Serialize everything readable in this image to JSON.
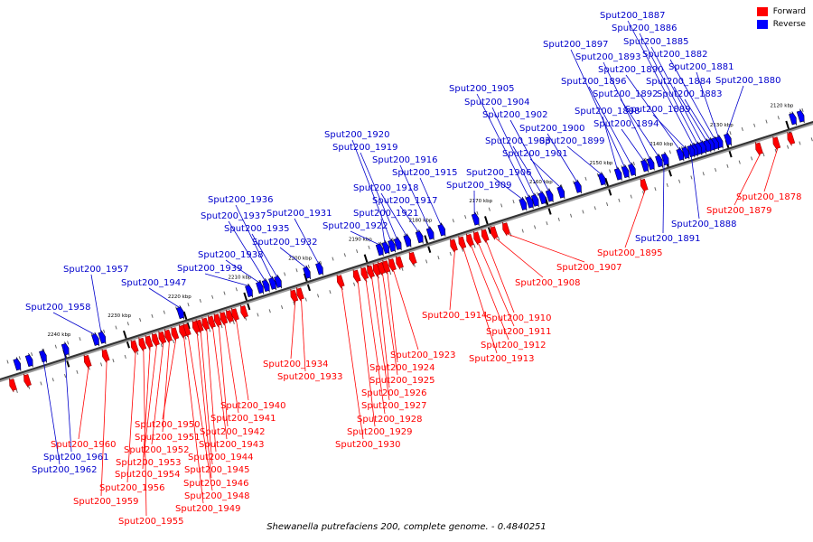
{
  "legend": {
    "forward_label": "Forward",
    "reverse_label": "Reverse",
    "forward_color": "#ff0000",
    "reverse_color": "#0000ff"
  },
  "caption": "Shewanella putrefaciens 200, complete genome. - 0.4840251",
  "track": {
    "start_kbp": 2116,
    "end_kbp": 2251,
    "ticks": [
      "2120 kbp",
      "2130 kbp",
      "2140 kbp",
      "2150 kbp",
      "2160 kbp",
      "2170 kbp",
      "2180 kbp",
      "2190 kbp",
      "2200 kbp",
      "2210 kbp",
      "2220 kbp",
      "2230 kbp",
      "2240 kbp"
    ]
  },
  "genes": [
    {
      "label": "Sput200_1878",
      "strand": "forward",
      "kbp": 2122.6
    },
    {
      "label": "Sput200_1879",
      "strand": "forward",
      "kbp": 2125.5
    },
    {
      "label": "Sput200_1880",
      "strand": "reverse",
      "kbp": 2129.6
    },
    {
      "label": "Sput200_1881",
      "strand": "reverse",
      "kbp": 2131.0
    },
    {
      "label": "Sput200_1882",
      "strand": "reverse",
      "kbp": 2131.7
    },
    {
      "label": "Sput200_1883",
      "strand": "reverse",
      "kbp": 2132.4
    },
    {
      "label": "Sput200_1884",
      "strand": "reverse",
      "kbp": 2133.0
    },
    {
      "label": "Sput200_1885",
      "strand": "reverse",
      "kbp": 2133.8
    },
    {
      "label": "Sput200_1886",
      "strand": "reverse",
      "kbp": 2134.5
    },
    {
      "label": "Sput200_1887",
      "strand": "reverse",
      "kbp": 2135.2
    },
    {
      "label": "Sput200_1888",
      "strand": "reverse",
      "kbp": 2135.7
    },
    {
      "label": "Sput200_1889",
      "strand": "reverse",
      "kbp": 2136.6
    },
    {
      "label": "Sput200_1890",
      "strand": "reverse",
      "kbp": 2137.5
    },
    {
      "label": "Sput200_1891",
      "strand": "reverse",
      "kbp": 2140.0
    },
    {
      "label": "Sput200_1892",
      "strand": "reverse",
      "kbp": 2141.0
    },
    {
      "label": "Sput200_1893",
      "strand": "reverse",
      "kbp": 2142.4
    },
    {
      "label": "Sput200_1894",
      "strand": "reverse",
      "kbp": 2143.4
    },
    {
      "label": "Sput200_1895",
      "strand": "forward",
      "kbp": 2144.6
    },
    {
      "label": "Sput200_1896",
      "strand": "reverse",
      "kbp": 2145.5
    },
    {
      "label": "Sput200_1897",
      "strand": "reverse",
      "kbp": 2146.6
    },
    {
      "label": "Sput200_1898",
      "strand": "reverse",
      "kbp": 2147.8
    },
    {
      "label": "Sput200_1899",
      "strand": "reverse",
      "kbp": 2150.5
    },
    {
      "label": "Sput200_1900",
      "strand": "reverse",
      "kbp": 2154.5
    },
    {
      "label": "Sput200_1901",
      "strand": "reverse",
      "kbp": 2157.3
    },
    {
      "label": "Sput200_1902",
      "strand": "reverse",
      "kbp": 2159.2
    },
    {
      "label": "Sput200_1903",
      "strand": "reverse",
      "kbp": 2160.4
    },
    {
      "label": "Sput200_1904",
      "strand": "reverse",
      "kbp": 2161.6
    },
    {
      "label": "Sput200_1905",
      "strand": "reverse",
      "kbp": 2162.5
    },
    {
      "label": "Sput200_1906",
      "strand": "reverse",
      "kbp": 2163.6
    },
    {
      "label": "Sput200_1907",
      "strand": "forward",
      "kbp": 2167.5
    },
    {
      "label": "Sput200_1908",
      "strand": "forward",
      "kbp": 2169.5
    },
    {
      "label": "Sput200_1909",
      "strand": "reverse",
      "kbp": 2171.5
    },
    {
      "label": "Sput200_1910",
      "strand": "forward",
      "kbp": 2171.0
    },
    {
      "label": "Sput200_1911",
      "strand": "forward",
      "kbp": 2172.3
    },
    {
      "label": "Sput200_1912",
      "strand": "forward",
      "kbp": 2173.5
    },
    {
      "label": "Sput200_1913",
      "strand": "forward",
      "kbp": 2174.8
    },
    {
      "label": "Sput200_1914",
      "strand": "forward",
      "kbp": 2176.2
    },
    {
      "label": "Sput200_1915",
      "strand": "reverse",
      "kbp": 2177.1
    },
    {
      "label": "Sput200_1916",
      "strand": "reverse",
      "kbp": 2179.0
    },
    {
      "label": "Sput200_1917",
      "strand": "reverse",
      "kbp": 2180.8
    },
    {
      "label": "Sput200_1918",
      "strand": "reverse",
      "kbp": 2182.8
    },
    {
      "label": "Sput200_1919",
      "strand": "reverse",
      "kbp": 2184.4
    },
    {
      "label": "Sput200_1920",
      "strand": "reverse",
      "kbp": 2185.4
    },
    {
      "label": "Sput200_1921",
      "strand": "reverse",
      "kbp": 2186.4
    },
    {
      "label": "Sput200_1922",
      "strand": "reverse",
      "kbp": 2187.4
    },
    {
      "label": "Sput200_1923",
      "strand": "forward",
      "kbp": 2186.4
    },
    {
      "label": "Sput200_1924",
      "strand": "forward",
      "kbp": 2187.4
    },
    {
      "label": "Sput200_1925",
      "strand": "forward",
      "kbp": 2188.2
    },
    {
      "label": "Sput200_1926",
      "strand": "forward",
      "kbp": 2189.0
    },
    {
      "label": "Sput200_1927",
      "strand": "forward",
      "kbp": 2190.0
    },
    {
      "label": "Sput200_1928",
      "strand": "forward",
      "kbp": 2191.0
    },
    {
      "label": "Sput200_1929",
      "strand": "forward",
      "kbp": 2192.3
    },
    {
      "label": "Sput200_1930",
      "strand": "forward",
      "kbp": 2195.0
    },
    {
      "label": "Sput200_1931",
      "strand": "reverse",
      "kbp": 2197.4
    },
    {
      "label": "Sput200_1932",
      "strand": "reverse",
      "kbp": 2199.5
    },
    {
      "label": "Sput200_1933",
      "strand": "forward",
      "kbp": 2201.7
    },
    {
      "label": "Sput200_1934",
      "strand": "forward",
      "kbp": 2202.7
    },
    {
      "label": "Sput200_1935",
      "strand": "reverse",
      "kbp": 2204.3
    },
    {
      "label": "Sput200_1936",
      "strand": "reverse",
      "kbp": 2205.2
    },
    {
      "label": "Sput200_1937",
      "strand": "reverse",
      "kbp": 2206.3
    },
    {
      "label": "Sput200_1938",
      "strand": "reverse",
      "kbp": 2207.3
    },
    {
      "label": "Sput200_1939",
      "strand": "reverse",
      "kbp": 2209.1
    },
    {
      "label": "Sput200_1940",
      "strand": "forward",
      "kbp": 2212.5
    },
    {
      "label": "Sput200_1941",
      "strand": "forward",
      "kbp": 2214.4
    },
    {
      "label": "Sput200_1942",
      "strand": "forward",
      "kbp": 2215.4
    },
    {
      "label": "Sput200_1943",
      "strand": "forward",
      "kbp": 2216.4
    },
    {
      "label": "Sput200_1944",
      "strand": "forward",
      "kbp": 2217.4
    },
    {
      "label": "Sput200_1945",
      "strand": "forward",
      "kbp": 2218.4
    },
    {
      "label": "Sput200_1946",
      "strand": "forward",
      "kbp": 2219.0
    },
    {
      "label": "Sput200_1947",
      "strand": "reverse",
      "kbp": 2220.5
    },
    {
      "label": "Sput200_1948",
      "strand": "forward",
      "kbp": 2220.5
    },
    {
      "label": "Sput200_1949",
      "strand": "forward",
      "kbp": 2221.2
    },
    {
      "label": "Sput200_1950",
      "strand": "forward",
      "kbp": 2222.5
    },
    {
      "label": "Sput200_1951",
      "strand": "forward",
      "kbp": 2223.6
    },
    {
      "label": "Sput200_1952",
      "strand": "forward",
      "kbp": 2224.6
    },
    {
      "label": "Sput200_1953",
      "strand": "forward",
      "kbp": 2225.7
    },
    {
      "label": "Sput200_1954",
      "strand": "forward",
      "kbp": 2226.8
    },
    {
      "label": "Sput200_1955",
      "strand": "forward",
      "kbp": 2227.9
    },
    {
      "label": "Sput200_1956",
      "strand": "forward",
      "kbp": 2229.2
    },
    {
      "label": "Sput200_1957",
      "strand": "reverse",
      "kbp": 2233.5
    },
    {
      "label": "Sput200_1958",
      "strand": "reverse",
      "kbp": 2234.6
    },
    {
      "label": "Sput200_1959",
      "strand": "forward",
      "kbp": 2234.0
    },
    {
      "label": "Sput200_1960",
      "strand": "forward",
      "kbp": 2237.0
    },
    {
      "label": "Sput200_1961",
      "strand": "reverse",
      "kbp": 2239.6
    },
    {
      "label": "Sput200_1962",
      "strand": "reverse",
      "kbp": 2243.3
    }
  ]
}
